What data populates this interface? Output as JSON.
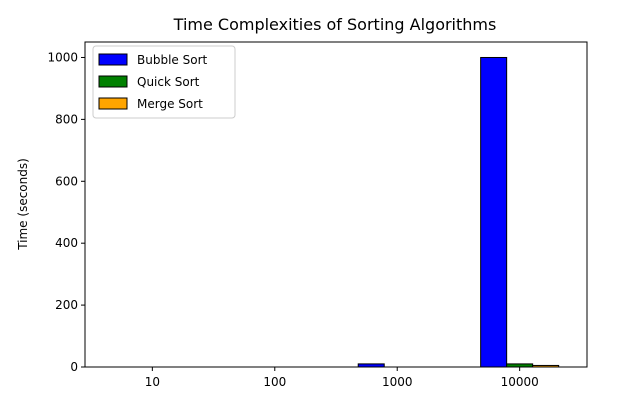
{
  "chart_data": {
    "type": "bar",
    "title": "Time Complexities of Sorting Algorithms",
    "xlabel": "",
    "ylabel": "Time (seconds)",
    "categories": [
      "10",
      "100",
      "1000",
      "10000"
    ],
    "series": [
      {
        "name": "Bubble Sort",
        "color": "#0000ff",
        "values": [
          0.0001,
          0.01,
          10,
          1000
        ]
      },
      {
        "name": "Quick Sort",
        "color": "#008000",
        "values": [
          3e-05,
          0.0005,
          0.01,
          10
        ]
      },
      {
        "name": "Merge Sort",
        "color": "#ffa500",
        "values": [
          3e-05,
          0.0005,
          0.01,
          5
        ]
      }
    ],
    "ylim": [
      0,
      1050
    ],
    "yticks": [
      "0",
      "200",
      "400",
      "600",
      "800",
      "1000"
    ],
    "grid": false,
    "legend_position": "upper-left"
  }
}
